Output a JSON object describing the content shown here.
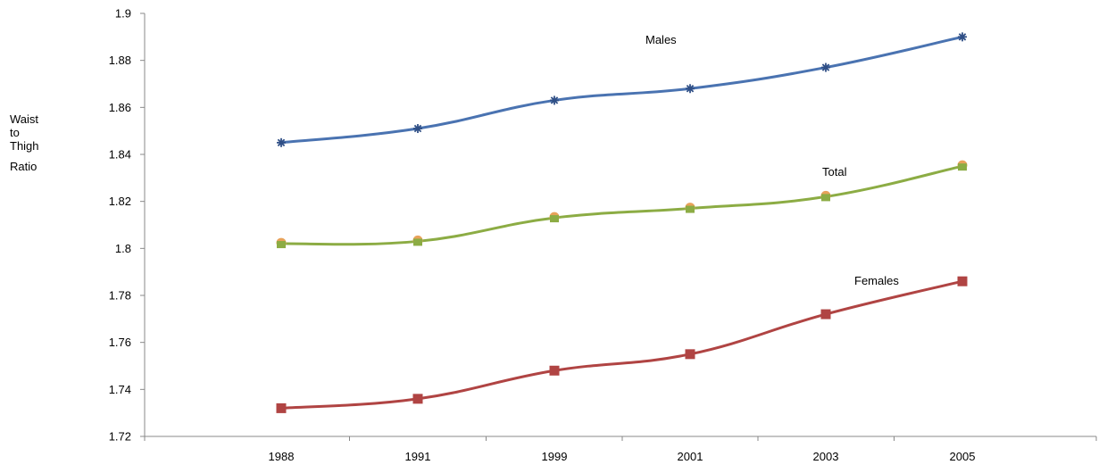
{
  "chart_data": {
    "type": "line",
    "title": "",
    "xlabel": "",
    "ylabel_lines": [
      "Waist",
      "to",
      "Thigh",
      "Ratio"
    ],
    "categories": [
      "1988",
      "1991",
      "1999",
      "2001",
      "2003",
      "2005"
    ],
    "ylim": [
      1.72,
      1.9
    ],
    "yticks": [
      "1.72",
      "1.74",
      "1.76",
      "1.78",
      "1.8",
      "1.82",
      "1.84",
      "1.86",
      "1.88",
      "1.9"
    ],
    "grid": false,
    "series": [
      {
        "name": "Males",
        "color": "#4a73b1",
        "marker": "asterisk",
        "values": [
          1.845,
          1.851,
          1.863,
          1.868,
          1.877,
          1.89
        ]
      },
      {
        "name": "Total",
        "color": "#8cac44",
        "marker": "square-over-circle",
        "marker_color_2": "#e8a25a",
        "values": [
          1.802,
          1.803,
          1.813,
          1.817,
          1.822,
          1.835
        ]
      },
      {
        "name": "Females",
        "color": "#b04443",
        "marker": "square",
        "values": [
          1.732,
          1.736,
          1.748,
          1.755,
          1.772,
          1.786
        ]
      }
    ]
  }
}
